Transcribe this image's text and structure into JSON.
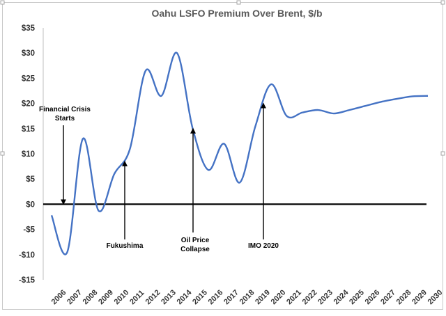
{
  "chart_data": {
    "type": "line",
    "title": "Oahu LSFO Premium Over Brent, $/b",
    "xlabel": "",
    "ylabel": "",
    "ylim": [
      -15,
      35
    ],
    "yticks": [
      35,
      30,
      25,
      20,
      15,
      10,
      5,
      0,
      -5,
      -10,
      -15
    ],
    "ytick_labels": [
      "$35",
      "$30",
      "$25",
      "$20",
      "$15",
      "$10",
      "$5",
      "$0",
      "-$5",
      "-$10",
      "-$15"
    ],
    "categories": [
      "2006",
      "2007",
      "2008",
      "2009",
      "2010",
      "2011",
      "2012",
      "2013",
      "2014",
      "2015",
      "2016",
      "2017",
      "2018",
      "2019",
      "2020",
      "2021",
      "2022",
      "2023",
      "2024",
      "2025",
      "2026",
      "2027",
      "2028",
      "2029",
      "2030"
    ],
    "series": [
      {
        "name": "Oahu LSFO Premium Over Brent",
        "color": "#4472C4",
        "values": [
          -2.2,
          -9.5,
          13.0,
          -1.3,
          6.0,
          11.0,
          26.5,
          21.5,
          30.0,
          15.0,
          6.8,
          12.0,
          4.3,
          15.5,
          23.8,
          17.5,
          18.2,
          18.7,
          18.0,
          18.7,
          19.5,
          20.3,
          20.9,
          21.4,
          21.5
        ]
      }
    ],
    "grid": false,
    "annotations": [
      {
        "id": "financial-crisis",
        "lines": [
          "Financial Crisis",
          "Starts"
        ],
        "x": "2007",
        "y": 0
      },
      {
        "id": "fukushima",
        "lines": [
          "Fukushima"
        ],
        "x": "2011",
        "y": 8.5
      },
      {
        "id": "oil-price-collapse",
        "lines": [
          "Oil Price",
          "Collapse"
        ],
        "x": "2015",
        "y": 15
      },
      {
        "id": "imo-2020",
        "lines": [
          "IMO 2020"
        ],
        "x": "2020",
        "y": 20
      }
    ]
  }
}
